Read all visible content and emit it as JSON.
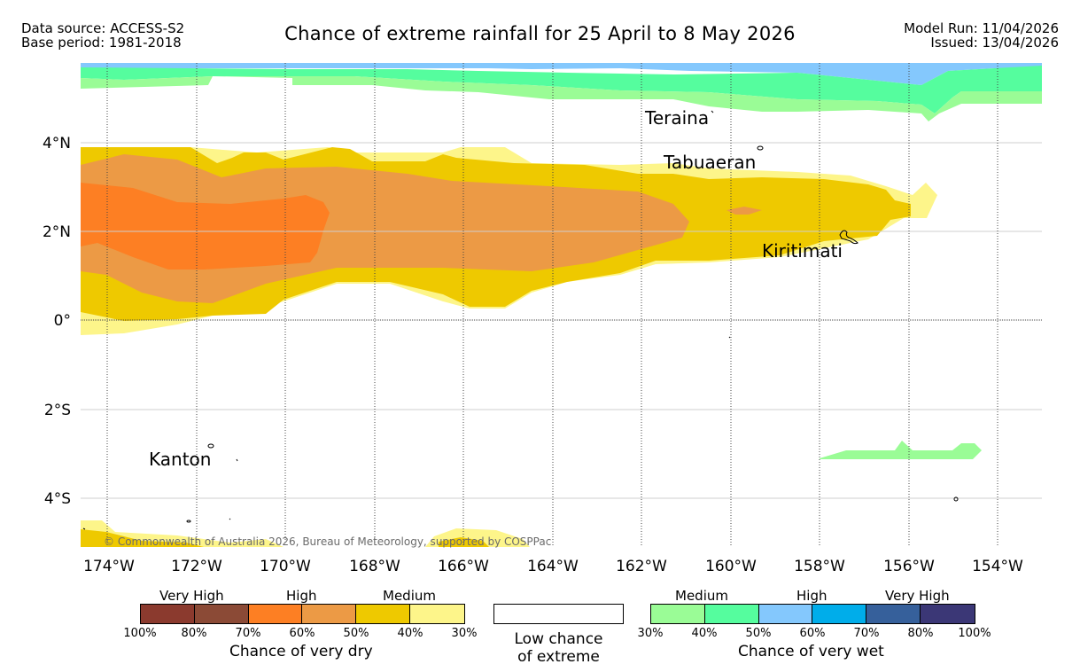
{
  "header": {
    "source": "Data source: ACCESS-S2",
    "base_period": "Base period: 1981-2018",
    "title": "Chance of extreme rainfall for 25 April to 8 May 2026",
    "model_run": "Model Run: 11/04/2026",
    "issued": "Issued: 13/04/2026"
  },
  "map": {
    "lat_labels": [
      "4°N",
      "2°N",
      "0°",
      "2°S",
      "4°S"
    ],
    "lon_labels": [
      "174°W",
      "172°W",
      "170°W",
      "168°W",
      "166°W",
      "164°W",
      "162°W",
      "160°W",
      "158°W",
      "156°W",
      "154°W"
    ],
    "places": [
      "Teraina",
      "Tabuaeran",
      "Kiritimati",
      "Kanton"
    ],
    "copyright": "© Commonwealth of Australia 2026, Bureau of Meteorology, supported by COSPPac"
  },
  "legend": {
    "dry": {
      "categories": [
        "Very High",
        "High",
        "Medium"
      ],
      "ticks": [
        "100%",
        "80%",
        "70%",
        "60%",
        "50%",
        "40%",
        "30%"
      ],
      "colors": [
        "#8b3a2e",
        "#8b4a36",
        "#fd7f23",
        "#ec9a45",
        "#eec900",
        "#fdf58a"
      ],
      "caption": "Chance of very dry"
    },
    "neutral": {
      "line1": "Low chance",
      "line2": "of extreme"
    },
    "wet": {
      "categories": [
        "Medium",
        "High",
        "Very High"
      ],
      "ticks": [
        "30%",
        "40%",
        "50%",
        "60%",
        "70%",
        "80%",
        "100%"
      ],
      "colors": [
        "#9afc96",
        "#55fd9e",
        "#84c8fd",
        "#00adea",
        "#36609b",
        "#3b3776"
      ],
      "caption": "Chance of very wet"
    }
  }
}
